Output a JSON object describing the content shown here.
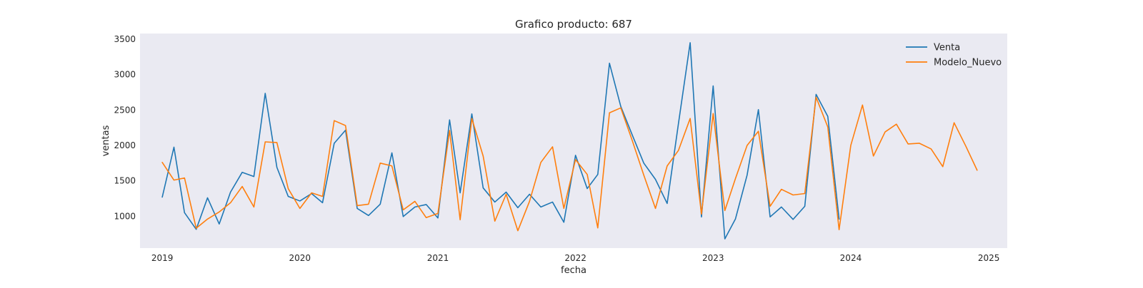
{
  "chart_data": {
    "type": "line",
    "title": "Grafico producto: 687",
    "xlabel": "fecha",
    "ylabel": "ventas",
    "grid": false,
    "legend_position": "top-right",
    "background_color": "#eaeaf2",
    "x_ticks": [
      "2019",
      "2020",
      "2021",
      "2022",
      "2023",
      "2024",
      "2025"
    ],
    "y_ticks": [
      1000,
      1500,
      2000,
      2500,
      3000,
      3500
    ],
    "xlim": [
      "2018-11-03",
      "2025-02-19"
    ],
    "ylim": [
      550,
      3580
    ],
    "series": [
      {
        "name": "Venta",
        "color": "#1f77b4",
        "x": [
          "2019-01-01",
          "2019-02-01",
          "2019-03-01",
          "2019-04-01",
          "2019-05-01",
          "2019-06-01",
          "2019-07-01",
          "2019-08-01",
          "2019-09-01",
          "2019-10-01",
          "2019-11-01",
          "2019-12-01",
          "2020-01-01",
          "2020-02-01",
          "2020-03-01",
          "2020-04-01",
          "2020-05-01",
          "2020-06-01",
          "2020-07-01",
          "2020-08-01",
          "2020-09-01",
          "2020-10-01",
          "2020-11-01",
          "2020-12-01",
          "2021-01-01",
          "2021-02-01",
          "2021-03-01",
          "2021-04-01",
          "2021-05-01",
          "2021-06-01",
          "2021-07-01",
          "2021-08-01",
          "2021-09-01",
          "2021-10-01",
          "2021-11-01",
          "2021-12-01",
          "2022-01-01",
          "2022-02-01",
          "2022-03-01",
          "2022-04-01",
          "2022-05-01",
          "2022-06-01",
          "2022-07-01",
          "2022-08-01",
          "2022-09-01",
          "2022-10-01",
          "2022-11-01",
          "2022-12-01",
          "2023-01-01",
          "2023-02-01",
          "2023-03-01",
          "2023-04-01",
          "2023-05-01",
          "2023-06-01",
          "2023-07-01",
          "2023-08-01",
          "2023-09-01",
          "2023-10-01",
          "2023-11-01",
          "2023-12-01"
        ],
        "values": [
          1270,
          1975,
          1050,
          815,
          1260,
          890,
          1340,
          1620,
          1560,
          2735,
          1690,
          1280,
          1215,
          1320,
          1190,
          2030,
          2215,
          1110,
          1010,
          1170,
          1895,
          995,
          1130,
          1165,
          975,
          2360,
          1330,
          2445,
          1400,
          1200,
          1340,
          1120,
          1310,
          1130,
          1200,
          915,
          1860,
          1390,
          1590,
          3160,
          2550,
          2140,
          1750,
          1520,
          1180,
          2310,
          3450,
          990,
          2840,
          680,
          960,
          1580,
          2505,
          990,
          1130,
          955,
          1140,
          2720,
          2410,
          960
        ]
      },
      {
        "name": "Modelo_Nuevo",
        "color": "#ff7f0e",
        "x": [
          "2019-01-01",
          "2019-02-01",
          "2019-03-01",
          "2019-04-01",
          "2019-05-01",
          "2019-06-01",
          "2019-07-01",
          "2019-08-01",
          "2019-09-01",
          "2019-10-01",
          "2019-11-01",
          "2019-12-01",
          "2020-01-01",
          "2020-02-01",
          "2020-03-01",
          "2020-04-01",
          "2020-05-01",
          "2020-06-01",
          "2020-07-01",
          "2020-08-01",
          "2020-09-01",
          "2020-10-01",
          "2020-11-01",
          "2020-12-01",
          "2021-01-01",
          "2021-02-01",
          "2021-03-01",
          "2021-04-01",
          "2021-05-01",
          "2021-06-01",
          "2021-07-01",
          "2021-08-01",
          "2021-09-01",
          "2021-10-01",
          "2021-11-01",
          "2021-12-01",
          "2022-01-01",
          "2022-02-01",
          "2022-03-01",
          "2022-04-01",
          "2022-05-01",
          "2022-06-01",
          "2022-07-01",
          "2022-08-01",
          "2022-09-01",
          "2022-10-01",
          "2022-11-01",
          "2022-12-01",
          "2023-01-01",
          "2023-02-01",
          "2023-03-01",
          "2023-04-01",
          "2023-05-01",
          "2023-06-01",
          "2023-07-01",
          "2023-08-01",
          "2023-09-01",
          "2023-10-01",
          "2023-11-01",
          "2023-12-01",
          "2024-01-01",
          "2024-02-01",
          "2024-03-01",
          "2024-04-01",
          "2024-05-01",
          "2024-06-01",
          "2024-07-01",
          "2024-08-01",
          "2024-09-01",
          "2024-10-01",
          "2024-11-01",
          "2024-12-01"
        ],
        "values": [
          1760,
          1510,
          1540,
          830,
          960,
          1060,
          1190,
          1420,
          1130,
          2050,
          2040,
          1390,
          1110,
          1330,
          1280,
          2350,
          2280,
          1150,
          1170,
          1750,
          1710,
          1090,
          1210,
          980,
          1040,
          2210,
          950,
          2380,
          1850,
          930,
          1310,
          795,
          1210,
          1760,
          1980,
          1110,
          1800,
          1590,
          835,
          2460,
          2530,
          2060,
          1580,
          1110,
          1710,
          1930,
          2380,
          1030,
          2450,
          1080,
          1530,
          2000,
          2200,
          1140,
          1380,
          1300,
          1320,
          2680,
          2260,
          810,
          2000,
          2570,
          1850,
          2190,
          2300,
          2020,
          2030,
          1950,
          1700,
          2320,
          1990,
          1650
        ]
      }
    ]
  }
}
